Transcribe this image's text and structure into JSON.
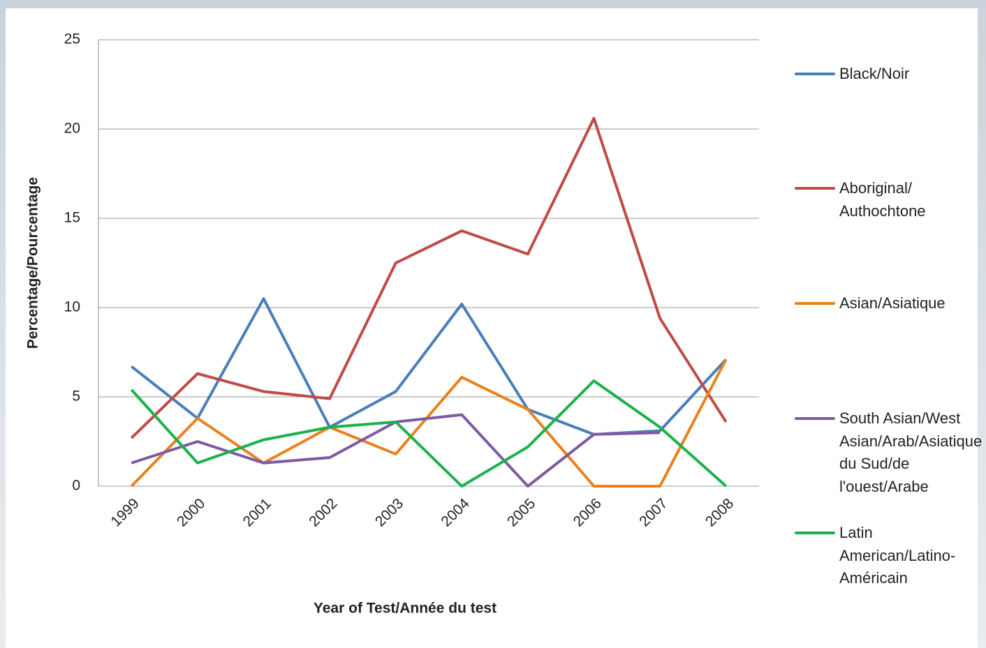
{
  "chart_data": {
    "type": "line",
    "xlabel": "Year of Test/Année du test",
    "ylabel": "Percentage/Pourcentage",
    "categories": [
      "1999",
      "2000",
      "2001",
      "2002",
      "2003",
      "2004",
      "2005",
      "2006",
      "2007",
      "2008"
    ],
    "ylim": [
      0,
      25
    ],
    "yticks": [
      0,
      5,
      10,
      15,
      20,
      25
    ],
    "grid": true,
    "legend": "right",
    "series": [
      {
        "name": "Black/Noir",
        "color": "#4a7ebb",
        "values": [
          6.7,
          3.8,
          10.5,
          3.3,
          5.3,
          10.2,
          4.3,
          2.9,
          3.1,
          7.1
        ]
      },
      {
        "name": "Aboriginal/ Authochtone",
        "color": "#be4b48",
        "values": [
          2.7,
          6.3,
          5.3,
          4.9,
          12.5,
          14.3,
          13.0,
          20.6,
          9.4,
          3.6
        ]
      },
      {
        "name": "Asian/Asiatique",
        "color": "#e8821e",
        "values": [
          0,
          3.8,
          1.3,
          3.3,
          1.8,
          6.1,
          4.3,
          0,
          0,
          7.1
        ]
      },
      {
        "name": "South Asian/West Asian/Arab/Asiatique du Sud/de l'ouest/Arabe",
        "color": "#7e5aa2",
        "values": [
          1.3,
          2.5,
          1.3,
          1.6,
          3.6,
          4.0,
          0,
          2.9,
          3.0,
          null
        ]
      },
      {
        "name": "Latin American/Latino-Américain",
        "color": "#1db14b",
        "values": [
          5.4,
          1.3,
          2.6,
          3.3,
          3.6,
          0,
          2.2,
          5.9,
          3.3,
          0
        ]
      }
    ]
  }
}
